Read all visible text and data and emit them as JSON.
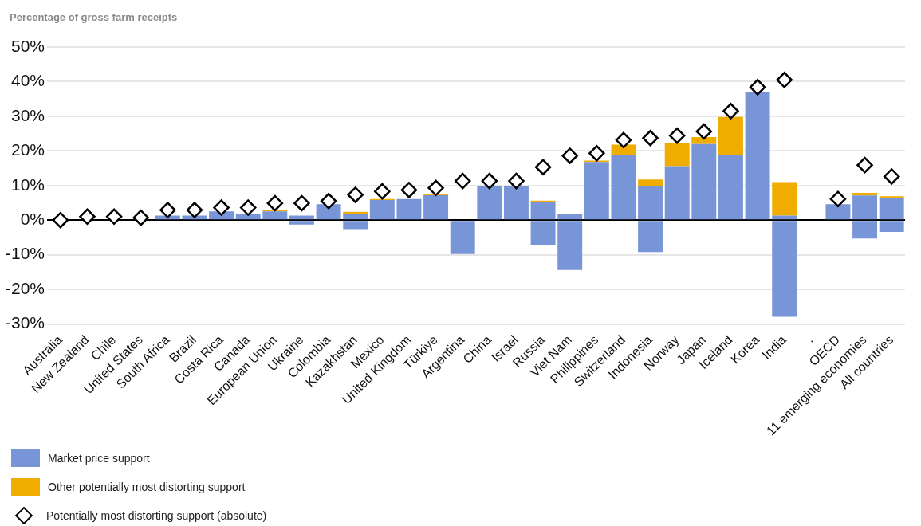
{
  "chart_data": {
    "type": "bar",
    "ylabel": "Percentage of gross farm receipts",
    "categories": [
      "Australia",
      "New Zealand",
      "Chile",
      "United States",
      "South Africa",
      "Brazil",
      "Costa Rica",
      "Canada",
      "European Union",
      "Ukraine",
      "Colombia",
      "Kazakhstan",
      "Mexico",
      "United Kingdom",
      "Türkiye",
      "Argentina",
      "China",
      "Israel",
      "Russia",
      "Viet Nam",
      "Philippines",
      "Switzerland",
      "Indonesia",
      "Norway",
      "Japan",
      "Iceland",
      "Korea",
      "India",
      ".",
      "OECD",
      "11 emerging economies",
      "All countries"
    ],
    "stacked": true,
    "series": [
      {
        "name": "Market price support",
        "color": "#7895d7",
        "values": [
          0,
          0,
          0,
          0,
          1.3,
          1.3,
          2.5,
          1.9,
          2.5,
          1.3,
          4.6,
          1.9,
          5.8,
          6.1,
          7.2,
          0,
          9.7,
          9.7,
          5.3,
          1.9,
          16.8,
          18.8,
          9.7,
          15.6,
          22.0,
          18.8,
          36.9,
          1.3,
          null,
          4.6,
          7.1,
          6.5
        ]
      },
      {
        "name": "Other potentially most distorting support",
        "color": "#f0ad00",
        "values": [
          0,
          0,
          0,
          0,
          0,
          0,
          0,
          0,
          0.5,
          0,
          0,
          0.5,
          0.3,
          0,
          0.3,
          0,
          0,
          0,
          0.3,
          0,
          0.4,
          3.0,
          2.0,
          6.6,
          2.0,
          11.0,
          0,
          9.7,
          null,
          0,
          0.8,
          0.4
        ]
      },
      {
        "color": "#7895d7",
        "values": [
          0,
          0,
          0,
          0,
          0,
          0,
          0,
          0,
          0,
          -1.3,
          0,
          -2.6,
          0,
          0,
          0,
          -9.8,
          0,
          0,
          -7.2,
          -14.4,
          0,
          0,
          -9.2,
          0,
          0,
          0,
          0,
          -27.9,
          null,
          0,
          -5.3,
          -3.4
        ]
      },
      {
        "name": "Potentially most distorting support (absolute)",
        "type": "scatter",
        "color": "#000000",
        "x": [
          "Australia",
          "New Zealand",
          "Chile",
          "United States",
          "South Africa",
          "Brazil",
          "Costa Rica",
          "Canada",
          "European Union",
          "Ukraine",
          "Colombia",
          "Kazakhstan",
          "Mexico",
          "United Kingdom",
          "Türkiye",
          "Argentina",
          "China",
          "Israel",
          "Russia",
          "Viet Nam",
          "Philippines",
          "Switzerland",
          "Indonesia",
          "Norway",
          "Japan",
          "Iceland",
          "Korea",
          "India",
          "OECD",
          "11 emerging economies",
          "All countries"
        ],
        "values": [
          0,
          1.0,
          1.0,
          0.7,
          2.9,
          2.9,
          3.6,
          3.6,
          4.9,
          4.9,
          5.5,
          7.3,
          8.3,
          8.7,
          9.3,
          11.3,
          11.3,
          11.3,
          15.3,
          18.6,
          19.3,
          23.1,
          23.7,
          24.4,
          25.6,
          31.5,
          38.4,
          40.5,
          6.1,
          15.9,
          12.6
        ]
      }
    ],
    "ylim": [
      -30,
      50
    ],
    "yticks": [
      {
        "value": -30,
        "label": "-30%"
      },
      {
        "value": -20,
        "label": "-20%"
      },
      {
        "value": -10,
        "label": "-10%"
      },
      {
        "value": 0,
        "label": "0%"
      },
      {
        "value": 10,
        "label": "10%"
      },
      {
        "value": 20,
        "label": "20%"
      },
      {
        "value": 30,
        "label": "30%"
      },
      {
        "value": 40,
        "label": "40%"
      },
      {
        "value": 50,
        "label": "50%"
      }
    ],
    "grid": "y",
    "legend": "bottom left",
    "marker": "diamond"
  }
}
